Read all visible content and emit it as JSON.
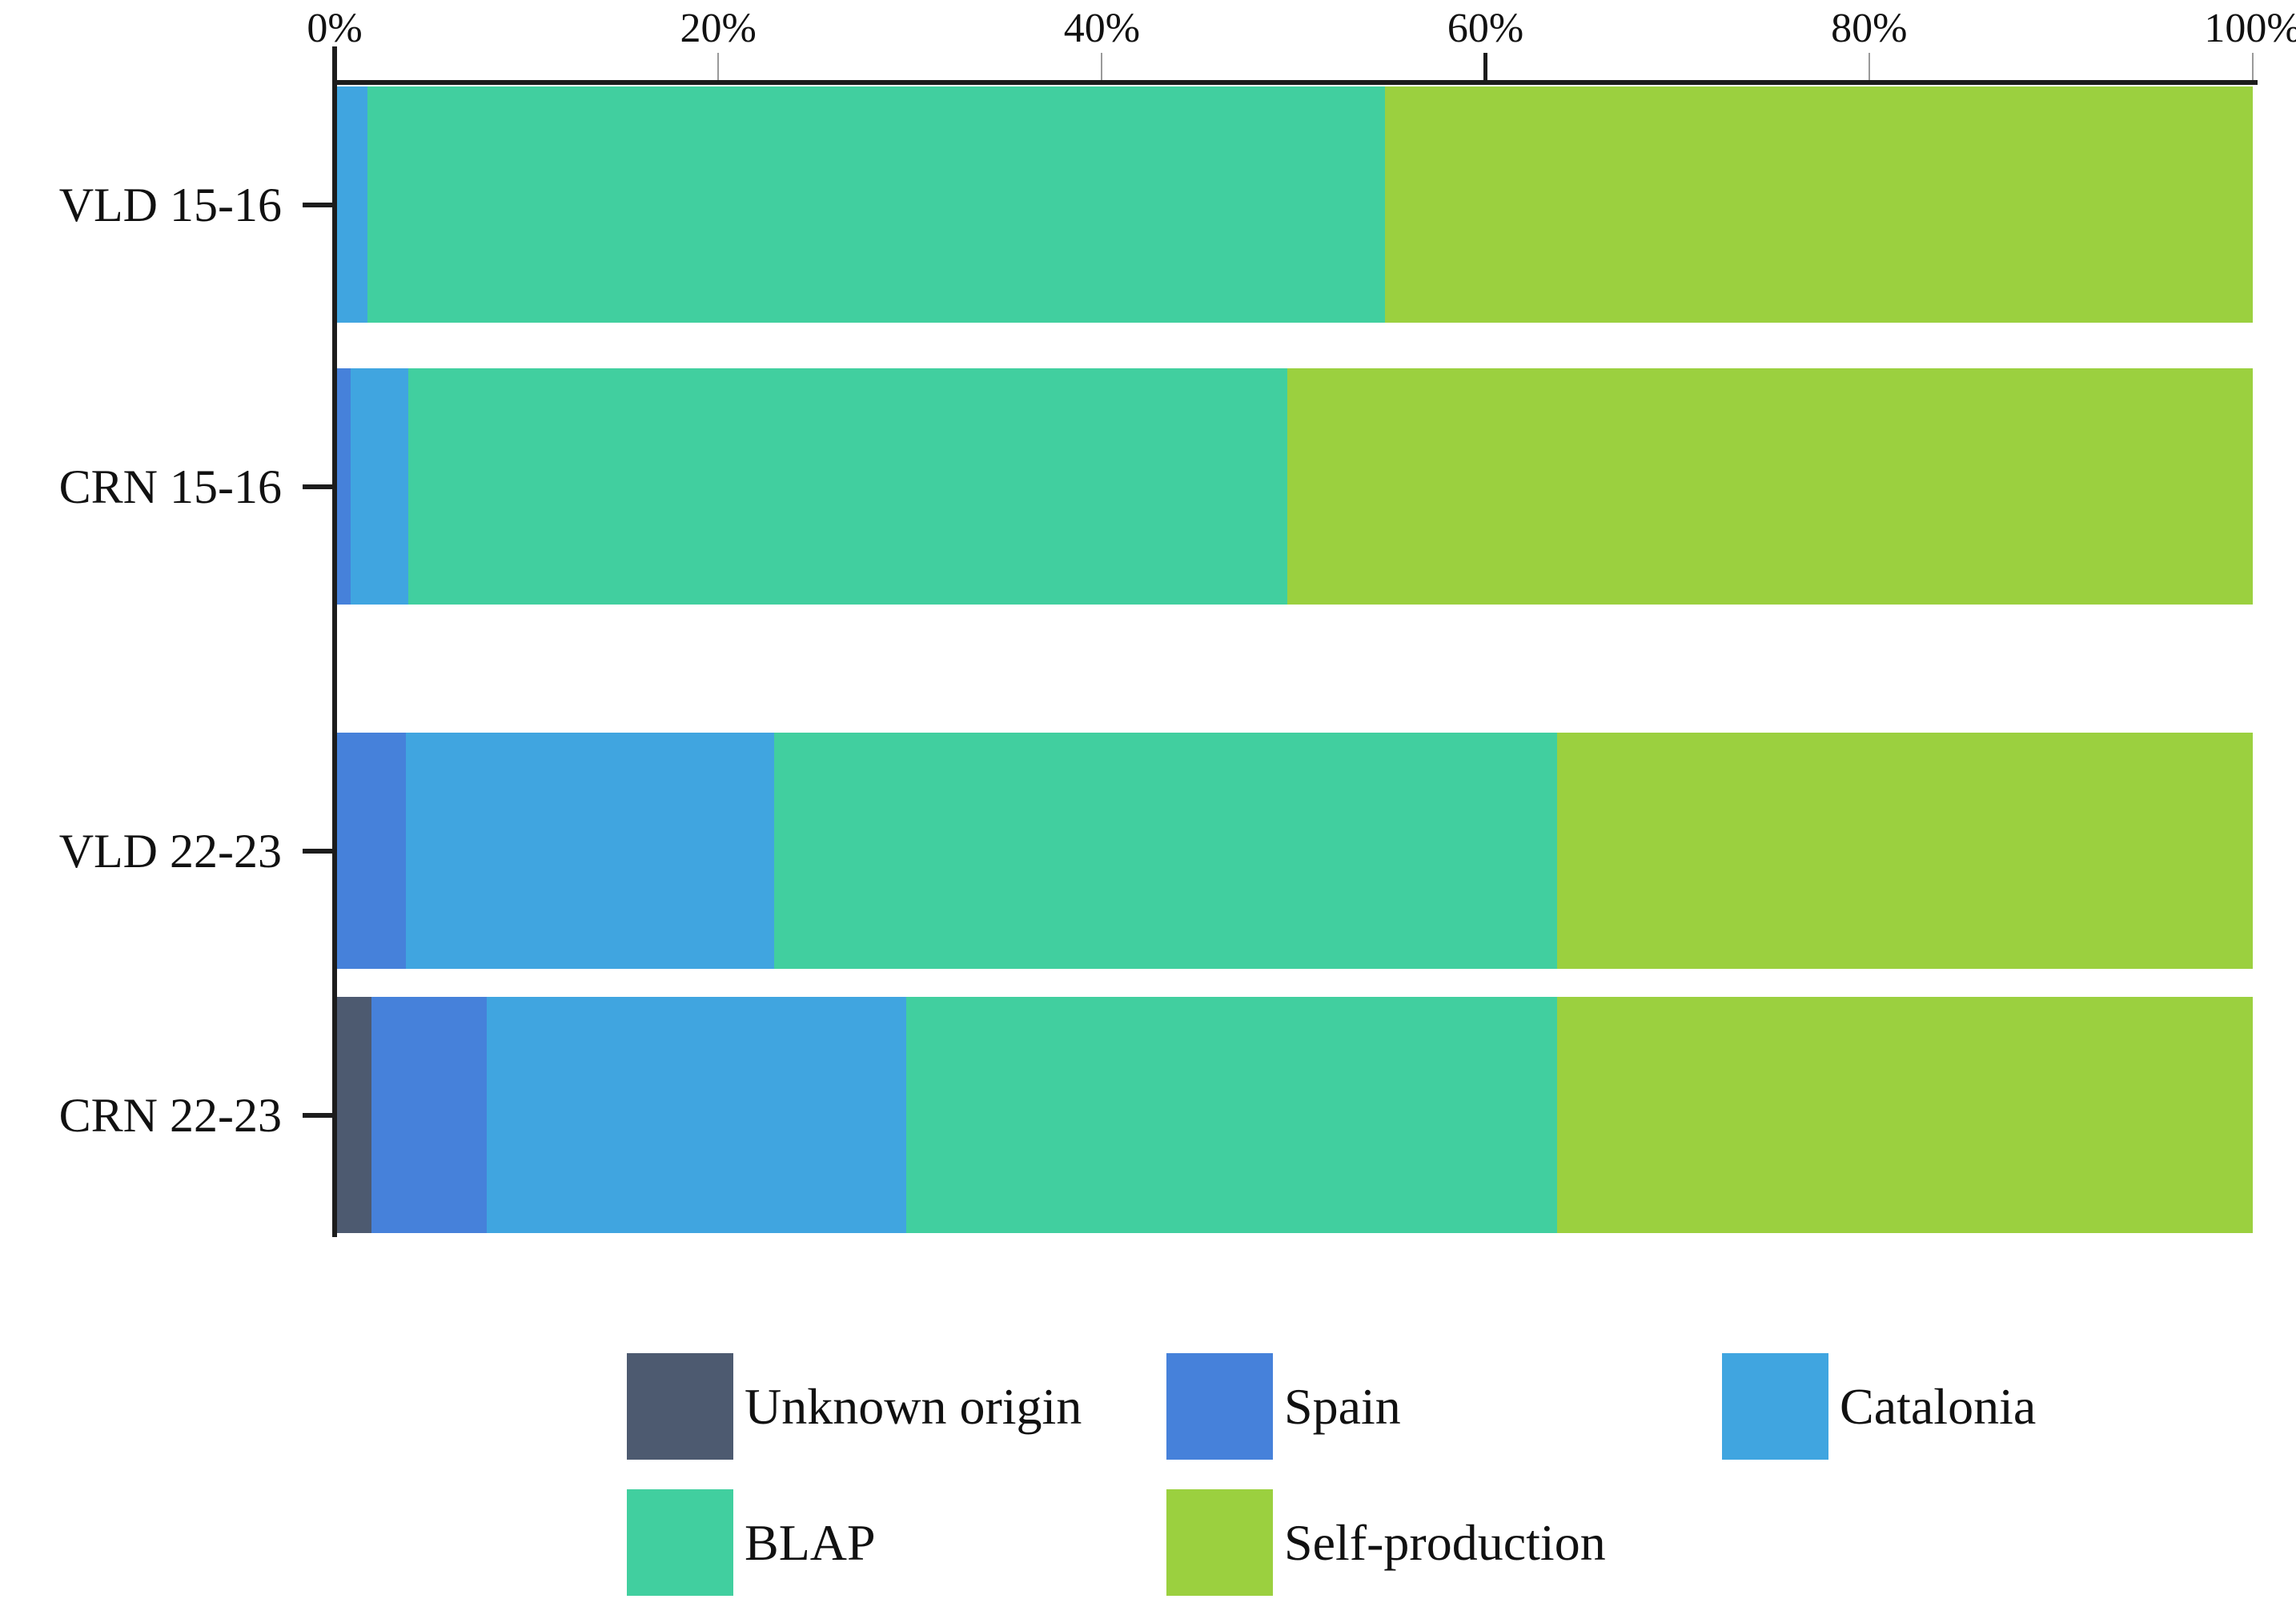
{
  "chart_data": {
    "type": "bar",
    "orientation": "horizontal",
    "stacked": true,
    "unit": "%",
    "title": "",
    "xlabel": "",
    "ylabel": "",
    "categories": [
      "VLD 15-16",
      "CRN 15-16",
      "VLD 22-23",
      "CRN 22-23"
    ],
    "series": [
      {
        "name": "Unknown origin",
        "color": "#4d5a70",
        "values": [
          0,
          0,
          0,
          1.8
        ]
      },
      {
        "name": "Spain",
        "color": "#4681da",
        "values": [
          0,
          0.7,
          3.6,
          6.0
        ]
      },
      {
        "name": "Catalonia",
        "color": "#40a5e0",
        "values": [
          1.6,
          3.0,
          19.2,
          21.9
        ]
      },
      {
        "name": "BLAP",
        "color": "#41cf9f",
        "values": [
          53.1,
          45.9,
          40.9,
          34.0
        ]
      },
      {
        "name": "Self-production",
        "color": "#9bd03f",
        "values": [
          45.3,
          50.4,
          36.3,
          36.3
        ]
      }
    ],
    "x_axis": {
      "position": "top",
      "min": 0,
      "max": 100,
      "tick_values": [
        0,
        20,
        40,
        60,
        80,
        100
      ],
      "tick_labels": [
        "0%",
        "20%",
        "40%",
        "60%",
        "80%",
        "100%"
      ],
      "grid": false
    },
    "legend": {
      "position": "bottom",
      "rows": [
        [
          "Unknown origin",
          "Spain",
          "Catalonia"
        ],
        [
          "BLAP",
          "Self-production"
        ]
      ]
    }
  },
  "colors": {
    "axis": "#1c1c1c",
    "minor_tick": "#9a9a9a",
    "text": "#111111",
    "background": "#ffffff"
  }
}
